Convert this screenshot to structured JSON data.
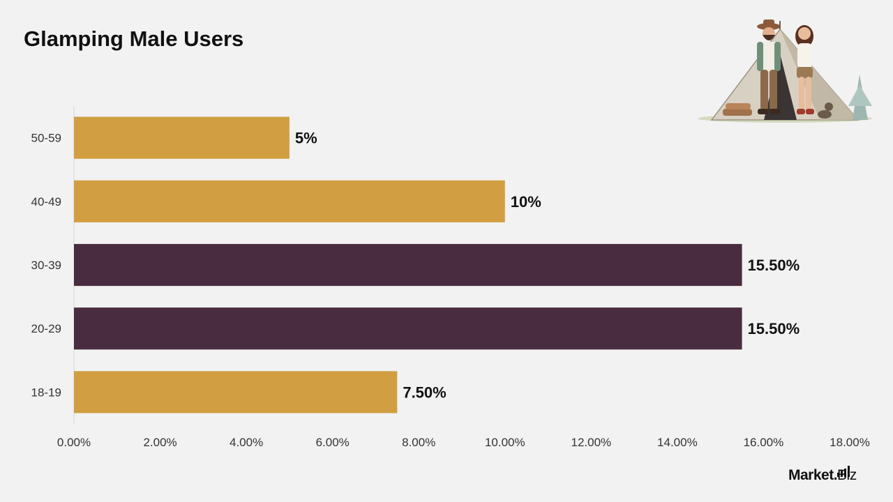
{
  "title": "Glamping Male Users",
  "brand": {
    "name": "Market",
    "dot": ".",
    "suffix": "Biz"
  },
  "colors": {
    "gold": "#d19f42",
    "plum": "#4a2c40",
    "background": "#f2f2f2",
    "text": "#111111",
    "tick": "#333333"
  },
  "illustration": {
    "icon": "camping-couple-tent-illustration"
  },
  "chart_data": {
    "type": "bar",
    "orientation": "horizontal",
    "categories": [
      "50-59",
      "40-49",
      "30-39",
      "20-29",
      "18-19"
    ],
    "values": [
      5,
      10,
      15.5,
      15.5,
      7.5
    ],
    "data_labels": [
      "5%",
      "10%",
      "15.50%",
      "15.50%",
      "7.50%"
    ],
    "bar_colors": [
      "#d19f42",
      "#d19f42",
      "#4a2c40",
      "#4a2c40",
      "#d19f42"
    ],
    "x_ticks": [
      0,
      2,
      4,
      6,
      8,
      10,
      12,
      14,
      16,
      18
    ],
    "x_tick_labels": [
      "0.00%",
      "2.00%",
      "4.00%",
      "6.00%",
      "8.00%",
      "10.00%",
      "12.00%",
      "14.00%",
      "16.00%",
      "18.00%"
    ],
    "xlim": [
      0,
      18
    ],
    "title": "Glamping Male Users",
    "xlabel": "",
    "ylabel": "",
    "grid": false,
    "legend": "none"
  }
}
